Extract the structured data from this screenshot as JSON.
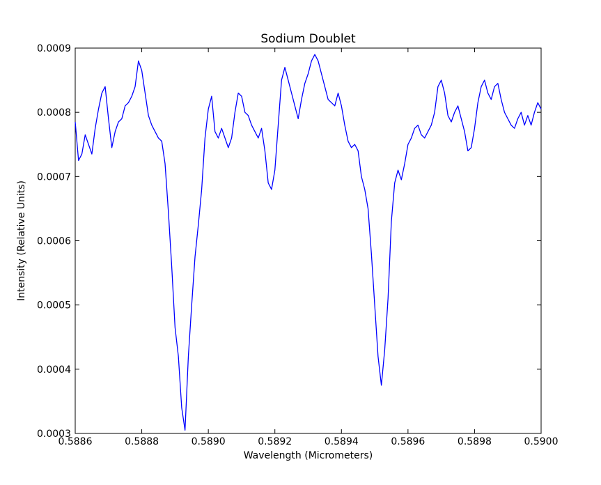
{
  "chart_data": {
    "type": "line",
    "title": "Sodium Doublet",
    "xlabel": "Wavelength (Micrometers)",
    "ylabel": "Intensity (Relative Units)",
    "xlim": [
      0.5886,
      0.59
    ],
    "ylim": [
      0.0003,
      0.0009
    ],
    "xticks": [
      "0.5886",
      "0.5888",
      "0.5890",
      "0.5892",
      "0.5894",
      "0.5896",
      "0.5898",
      "0.5900"
    ],
    "yticks": [
      "0.0003",
      "0.0004",
      "0.0005",
      "0.0006",
      "0.0007",
      "0.0008",
      "0.0009"
    ],
    "grid": false,
    "series": [
      {
        "color": "#0000ff",
        "x": [
          0.5886,
          0.58861,
          0.58862,
          0.58863,
          0.58864,
          0.58865,
          0.58866,
          0.58867,
          0.58868,
          0.58869,
          0.5887,
          0.58871,
          0.58872,
          0.58873,
          0.58874,
          0.58875,
          0.58876,
          0.58877,
          0.58878,
          0.58879,
          0.5888,
          0.58881,
          0.58882,
          0.58883,
          0.58884,
          0.58885,
          0.58886,
          0.58887,
          0.58888,
          0.58889,
          0.5889,
          0.58891,
          0.58892,
          0.58893,
          0.58894,
          0.58895,
          0.58896,
          0.58897,
          0.58898,
          0.58899,
          0.589,
          0.58901,
          0.58902,
          0.58903,
          0.58904,
          0.58905,
          0.58906,
          0.58907,
          0.58908,
          0.58909,
          0.5891,
          0.58911,
          0.58912,
          0.58913,
          0.58914,
          0.58915,
          0.58916,
          0.58917,
          0.58918,
          0.58919,
          0.5892,
          0.58921,
          0.58922,
          0.58923,
          0.58924,
          0.58925,
          0.58926,
          0.58927,
          0.58928,
          0.58929,
          0.5893,
          0.58931,
          0.58932,
          0.58933,
          0.58934,
          0.58935,
          0.58936,
          0.58937,
          0.58938,
          0.58939,
          0.5894,
          0.58941,
          0.58942,
          0.58943,
          0.58944,
          0.58945,
          0.58946,
          0.58947,
          0.58948,
          0.58949,
          0.5895,
          0.58951,
          0.58952,
          0.58953,
          0.58954,
          0.58955,
          0.58956,
          0.58957,
          0.58958,
          0.58959,
          0.5896,
          0.58961,
          0.58962,
          0.58963,
          0.58964,
          0.58965,
          0.58966,
          0.58967,
          0.58968,
          0.58969,
          0.5897,
          0.58971,
          0.58972,
          0.58973,
          0.58974,
          0.58975,
          0.58976,
          0.58977,
          0.58978,
          0.58979,
          0.5898,
          0.58981,
          0.58982,
          0.58983,
          0.58984,
          0.58985,
          0.58986,
          0.58987,
          0.58988,
          0.58989,
          0.5899,
          0.58991,
          0.58992,
          0.58993,
          0.58994,
          0.58995,
          0.58996,
          0.58997,
          0.58998,
          0.58999,
          0.59
        ],
        "y": [
          0.000785,
          0.000725,
          0.000735,
          0.000765,
          0.00075,
          0.000735,
          0.000775,
          0.000805,
          0.00083,
          0.00084,
          0.00079,
          0.000745,
          0.00077,
          0.000785,
          0.00079,
          0.00081,
          0.000815,
          0.000825,
          0.00084,
          0.00088,
          0.000865,
          0.00083,
          0.000795,
          0.00078,
          0.00077,
          0.00076,
          0.000755,
          0.00072,
          0.000645,
          0.00056,
          0.000465,
          0.00042,
          0.00034,
          0.000305,
          0.00042,
          0.0005,
          0.000575,
          0.000625,
          0.00068,
          0.00076,
          0.000805,
          0.000825,
          0.00077,
          0.00076,
          0.000775,
          0.00076,
          0.000745,
          0.00076,
          0.0008,
          0.00083,
          0.000825,
          0.0008,
          0.000795,
          0.00078,
          0.00077,
          0.00076,
          0.000775,
          0.00074,
          0.00069,
          0.00068,
          0.00071,
          0.00078,
          0.00085,
          0.00087,
          0.00085,
          0.00083,
          0.00081,
          0.00079,
          0.00082,
          0.000845,
          0.00086,
          0.00088,
          0.00089,
          0.00088,
          0.00086,
          0.00084,
          0.00082,
          0.000815,
          0.00081,
          0.00083,
          0.00081,
          0.00078,
          0.000755,
          0.000745,
          0.00075,
          0.00074,
          0.0007,
          0.00068,
          0.00065,
          0.00058,
          0.0005,
          0.00042,
          0.000375,
          0.00043,
          0.00051,
          0.00063,
          0.00069,
          0.00071,
          0.000695,
          0.00072,
          0.00075,
          0.00076,
          0.000775,
          0.00078,
          0.000765,
          0.00076,
          0.00077,
          0.00078,
          0.0008,
          0.00084,
          0.00085,
          0.00083,
          0.000795,
          0.000785,
          0.0008,
          0.00081,
          0.00079,
          0.00077,
          0.00074,
          0.000745,
          0.000775,
          0.000815,
          0.00084,
          0.00085,
          0.00083,
          0.00082,
          0.00084,
          0.000845,
          0.00082,
          0.0008,
          0.00079,
          0.00078,
          0.000775,
          0.00079,
          0.0008,
          0.00078,
          0.000795,
          0.00078,
          0.0008,
          0.000815,
          0.000805
        ]
      }
    ]
  }
}
